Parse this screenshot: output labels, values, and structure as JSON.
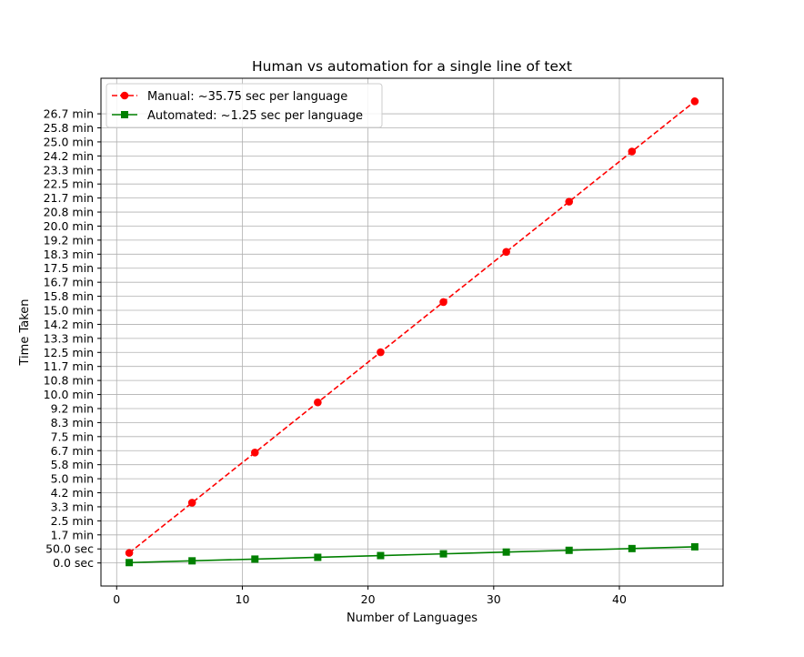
{
  "chart_data": {
    "type": "line",
    "title": "Human vs automation for a single line of text",
    "xlabel": "Number of Languages",
    "ylabel": "Time Taken",
    "x": [
      1,
      6,
      11,
      16,
      21,
      26,
      31,
      36,
      41,
      46
    ],
    "series": [
      {
        "name": "Manual: ~35.75 sec per language",
        "values": [
          35.75,
          214.5,
          393.25,
          572.0,
          750.75,
          929.5,
          1108.25,
          1287.0,
          1465.75,
          1644.5
        ],
        "color": "#ff0000",
        "line_style": "dashed",
        "marker": "circle"
      },
      {
        "name": "Automated: ~1.25 sec per language",
        "values": [
          1.25,
          7.5,
          13.75,
          20.0,
          26.25,
          32.5,
          38.75,
          45.0,
          51.25,
          57.5
        ],
        "color": "#008000",
        "line_style": "solid",
        "marker": "square"
      }
    ],
    "xlim": [
      -1.25,
      48.25
    ],
    "ylim": [
      -82.2,
      1726.7
    ],
    "x_ticks": [
      0,
      10,
      20,
      30,
      40
    ],
    "x_tick_labels": [
      "0",
      "10",
      "20",
      "30",
      "40"
    ],
    "y_ticks": [
      0,
      50,
      100,
      150,
      200,
      250,
      300,
      350,
      400,
      450,
      500,
      550,
      600,
      650,
      700,
      750,
      800,
      850,
      900,
      950,
      1000,
      1050,
      1100,
      1150,
      1200,
      1250,
      1300,
      1350,
      1400,
      1450,
      1500,
      1550,
      1600
    ],
    "y_tick_labels": [
      "0.0 sec",
      "50.0 sec",
      "1.7 min",
      "2.5 min",
      "3.3 min",
      "4.2 min",
      "5.0 min",
      "5.8 min",
      "6.7 min",
      "7.5 min",
      "8.3 min",
      "9.2 min",
      "10.0 min",
      "10.8 min",
      "11.7 min",
      "12.5 min",
      "13.3 min",
      "14.2 min",
      "15.0 min",
      "15.8 min",
      "16.7 min",
      "17.5 min",
      "18.3 min",
      "19.2 min",
      "20.0 min",
      "20.8 min",
      "21.7 min",
      "22.5 min",
      "23.3 min",
      "24.2 min",
      "25.0 min",
      "25.8 min",
      "26.7 min"
    ],
    "grid": true,
    "legend_position": "upper-left"
  }
}
